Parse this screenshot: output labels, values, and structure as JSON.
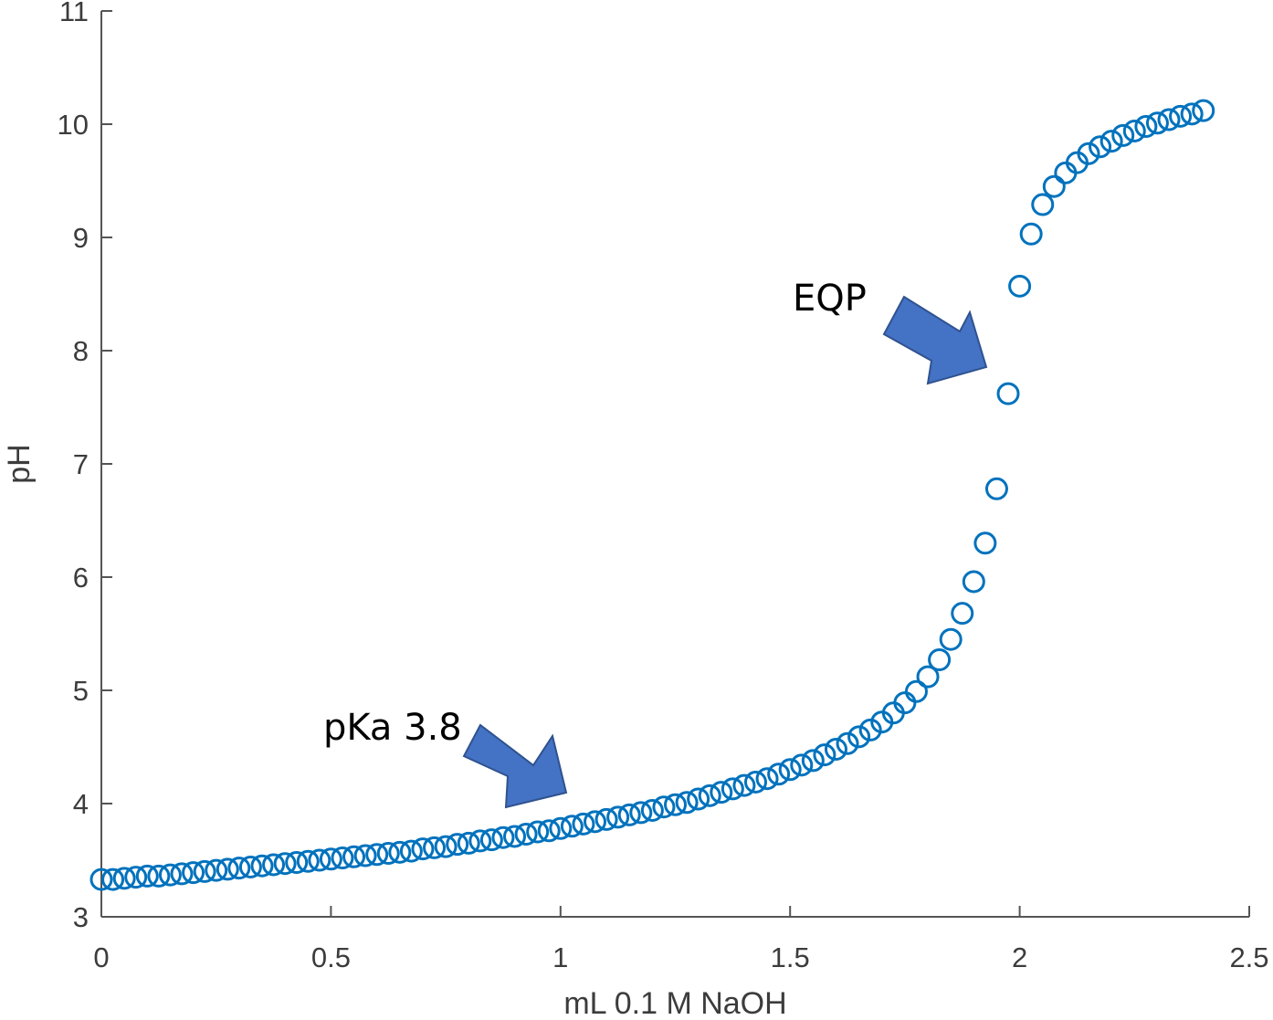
{
  "chart_data": {
    "type": "scatter",
    "title": "",
    "xlabel": "mL 0.1 M NaOH",
    "ylabel": "pH",
    "xlim": [
      0,
      2.5
    ],
    "ylim": [
      3,
      11
    ],
    "xticks": [
      0,
      0.5,
      1,
      1.5,
      2,
      2.5
    ],
    "xtick_labels": [
      "0",
      "0.5",
      "1",
      "1.5",
      "2",
      "2.5"
    ],
    "yticks": [
      3,
      4,
      5,
      6,
      7,
      8,
      9,
      10,
      11
    ],
    "ytick_labels": [
      "3",
      "4",
      "5",
      "6",
      "7",
      "8",
      "9",
      "10",
      "11"
    ],
    "grid": false,
    "marker": "open-circle",
    "marker_color": "#0072BD",
    "series": [
      {
        "x": [
          0.0,
          0.025,
          0.05,
          0.075,
          0.1,
          0.125,
          0.15,
          0.175,
          0.2,
          0.225,
          0.25,
          0.275,
          0.3,
          0.325,
          0.35,
          0.375,
          0.4,
          0.425,
          0.45,
          0.475,
          0.5,
          0.525,
          0.55,
          0.575,
          0.6,
          0.625,
          0.65,
          0.675,
          0.7,
          0.725,
          0.75,
          0.775,
          0.8,
          0.825,
          0.85,
          0.875,
          0.9,
          0.925,
          0.95,
          0.975,
          1.0,
          1.025,
          1.05,
          1.075,
          1.1,
          1.125,
          1.15,
          1.175,
          1.2,
          1.225,
          1.25,
          1.275,
          1.3,
          1.325,
          1.35,
          1.375,
          1.4,
          1.425,
          1.45,
          1.475,
          1.5,
          1.525,
          1.55,
          1.575,
          1.6,
          1.625,
          1.65,
          1.675,
          1.7,
          1.725,
          1.75,
          1.775,
          1.8,
          1.825,
          1.85,
          1.875,
          1.9,
          1.925,
          1.95,
          1.975,
          2.0,
          2.025,
          2.05,
          2.075,
          2.1,
          2.125,
          2.15,
          2.175,
          2.2,
          2.225,
          2.25,
          2.275,
          2.3,
          2.325,
          2.35,
          2.375,
          2.4
        ],
        "y": [
          3.33,
          3.33,
          3.34,
          3.35,
          3.36,
          3.36,
          3.37,
          3.38,
          3.39,
          3.4,
          3.41,
          3.42,
          3.43,
          3.44,
          3.45,
          3.46,
          3.47,
          3.48,
          3.49,
          3.5,
          3.51,
          3.52,
          3.53,
          3.54,
          3.55,
          3.56,
          3.57,
          3.58,
          3.6,
          3.61,
          3.62,
          3.64,
          3.65,
          3.67,
          3.68,
          3.7,
          3.71,
          3.73,
          3.75,
          3.76,
          3.78,
          3.8,
          3.82,
          3.84,
          3.86,
          3.88,
          3.9,
          3.92,
          3.94,
          3.97,
          3.99,
          4.01,
          4.04,
          4.07,
          4.1,
          4.13,
          4.16,
          4.19,
          4.22,
          4.26,
          4.3,
          4.34,
          4.38,
          4.43,
          4.48,
          4.53,
          4.59,
          4.65,
          4.72,
          4.8,
          4.89,
          4.99,
          5.12,
          5.27,
          5.45,
          5.68,
          5.96,
          6.3,
          6.78,
          7.62,
          8.57,
          9.03,
          9.29,
          9.45,
          9.57,
          9.66,
          9.74,
          9.8,
          9.85,
          9.9,
          9.94,
          9.98,
          10.01,
          10.04,
          10.07,
          10.09,
          10.12
        ]
      }
    ],
    "annotations": [
      {
        "text": "pKa 3.8",
        "target_x": 1.02,
        "target_y": 3.9
      },
      {
        "text": "EQP",
        "target_x": 1.95,
        "target_y": 7.8
      }
    ]
  }
}
